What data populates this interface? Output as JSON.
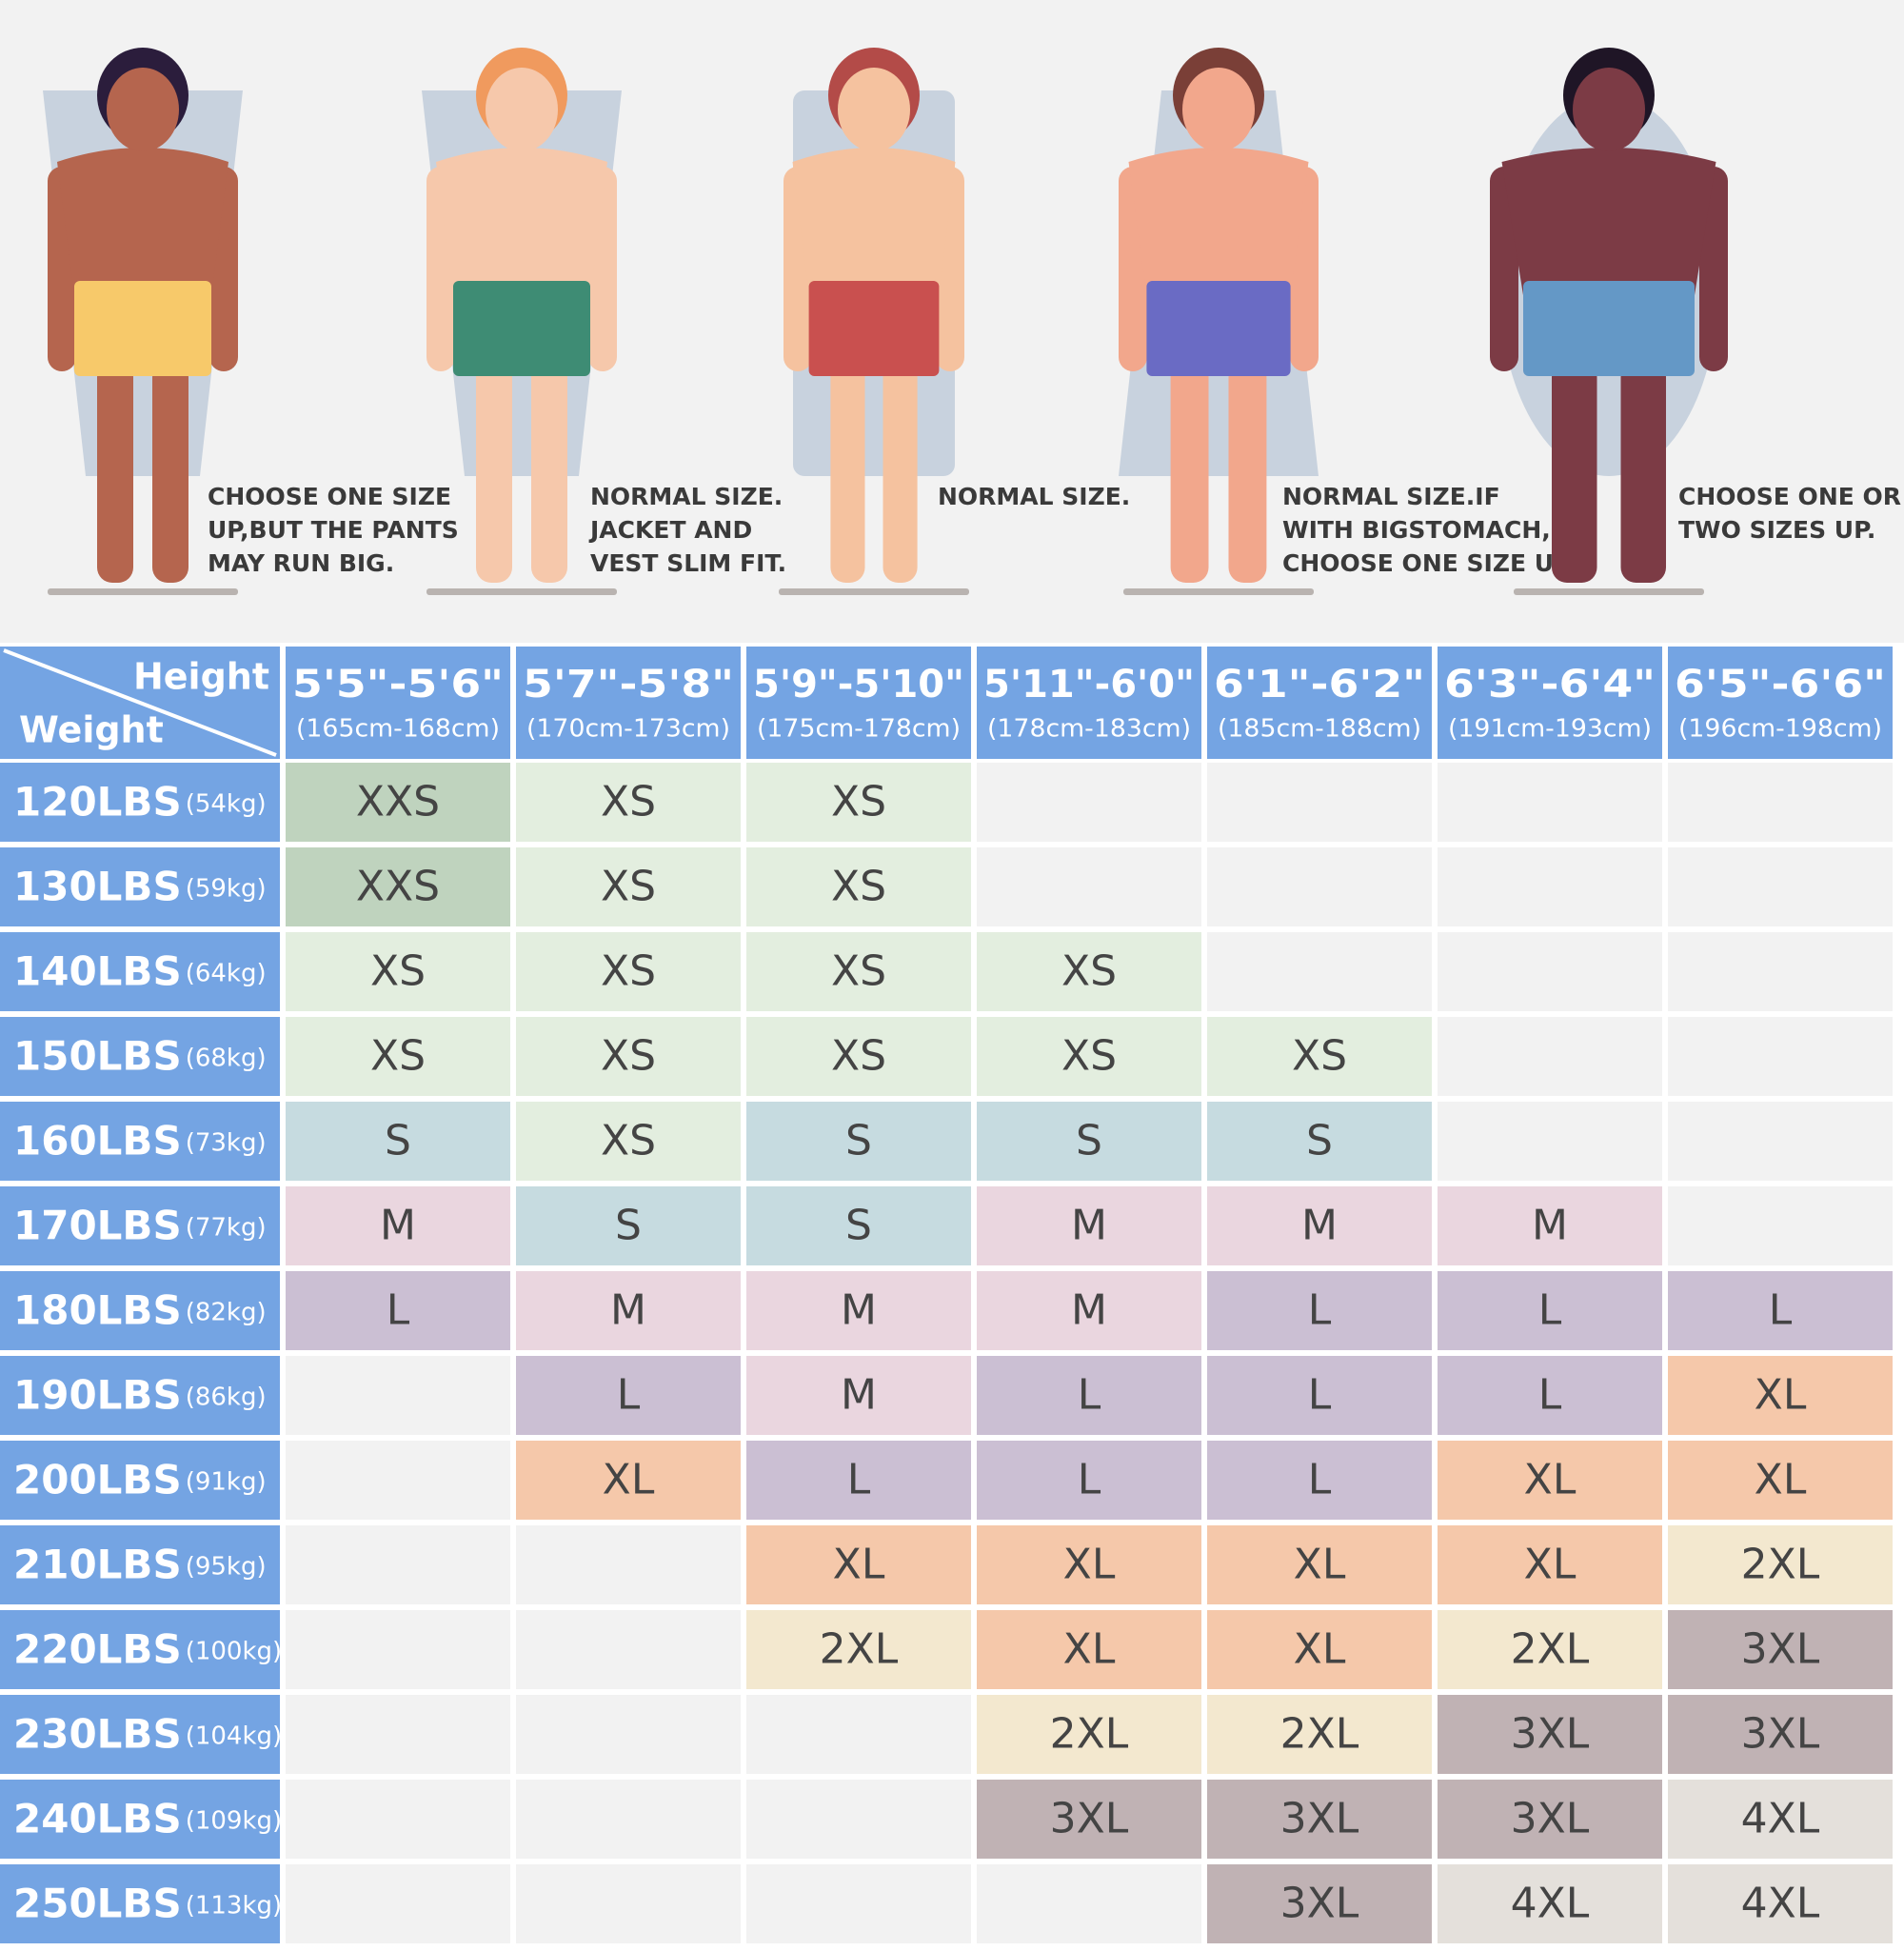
{
  "figures": [
    {
      "caption": [
        "CHOOSE ONE SIZE",
        "UP,BUT THE PANTS",
        "MAY RUN BIG."
      ]
    },
    {
      "caption": [
        "NORMAL SIZE.",
        "JACKET AND",
        "VEST SLIM FIT."
      ]
    },
    {
      "caption": [
        "NORMAL SIZE."
      ]
    },
    {
      "caption": [
        "NORMAL SIZE.IF",
        "WITH BIGSTOMACH,",
        "CHOOSE ONE SIZE UP."
      ]
    },
    {
      "caption": [
        "CHOOSE ONE OR",
        "TWO SIZES UP."
      ]
    }
  ],
  "table": {
    "corner": {
      "height": "Height",
      "weight": "Weight"
    },
    "columns": [
      {
        "height": "5'5\"-5'6\"",
        "cm": "(165cm-168cm)"
      },
      {
        "height": "5'7\"-5'8\"",
        "cm": "(170cm-173cm)"
      },
      {
        "height": "5'9\"-5'10\"",
        "cm": "(175cm-178cm)"
      },
      {
        "height": "5'11\"-6'0\"",
        "cm": "(178cm-183cm)"
      },
      {
        "height": "6'1\"-6'2\"",
        "cm": "(185cm-188cm)"
      },
      {
        "height": "6'3\"-6'4\"",
        "cm": "(191cm-193cm)"
      },
      {
        "height": "6'5\"-6'6\"",
        "cm": "(196cm-198cm)"
      }
    ],
    "rows": [
      {
        "lbs": "120LBS",
        "kg": "(54kg)",
        "cells": [
          "XXS",
          "XS",
          "XS",
          null,
          null,
          null,
          null
        ]
      },
      {
        "lbs": "130LBS",
        "kg": "(59kg)",
        "cells": [
          "XXS",
          "XS",
          "XS",
          null,
          null,
          null,
          null
        ]
      },
      {
        "lbs": "140LBS",
        "kg": "(64kg)",
        "cells": [
          "XS",
          "XS",
          "XS",
          "XS",
          null,
          null,
          null
        ]
      },
      {
        "lbs": "150LBS",
        "kg": "(68kg)",
        "cells": [
          "XS",
          "XS",
          "XS",
          "XS",
          "XS",
          null,
          null
        ]
      },
      {
        "lbs": "160LBS",
        "kg": "(73kg)",
        "cells": [
          "S",
          "XS",
          "S",
          "S",
          "S",
          null,
          null
        ]
      },
      {
        "lbs": "170LBS",
        "kg": "(77kg)",
        "cells": [
          "M",
          "S",
          "S",
          "M",
          "M",
          "M",
          null
        ]
      },
      {
        "lbs": "180LBS",
        "kg": "(82kg)",
        "cells": [
          "L",
          "M",
          "M",
          "M",
          "L",
          "L",
          "L"
        ]
      },
      {
        "lbs": "190LBS",
        "kg": "(86kg)",
        "cells": [
          null,
          "L",
          "M",
          "L",
          "L",
          "L",
          "XL"
        ]
      },
      {
        "lbs": "200LBS",
        "kg": "(91kg)",
        "cells": [
          null,
          "XL",
          "L",
          "L",
          "L",
          "XL",
          "XL"
        ]
      },
      {
        "lbs": "210LBS",
        "kg": "(95kg)",
        "cells": [
          null,
          null,
          "XL",
          "XL",
          "XL",
          "XL",
          "2XL"
        ]
      },
      {
        "lbs": "220LBS",
        "kg": "(100kg)",
        "cells": [
          null,
          null,
          "2XL",
          "XL",
          "XL",
          "2XL",
          "3XL"
        ]
      },
      {
        "lbs": "230LBS",
        "kg": "(104kg)",
        "cells": [
          null,
          null,
          null,
          "2XL",
          "2XL",
          "3XL",
          "3XL"
        ]
      },
      {
        "lbs": "240LBS",
        "kg": "(109kg)",
        "cells": [
          null,
          null,
          null,
          "3XL",
          "3XL",
          "3XL",
          "4XL"
        ]
      },
      {
        "lbs": "250LBS",
        "kg": "(113kg)",
        "cells": [
          null,
          null,
          null,
          null,
          "3XL",
          "4XL",
          "4XL"
        ]
      }
    ],
    "size_colors": {
      "XXS": "#bfd3be",
      "XS": "#e3eedf",
      "S": "#c6dbe0",
      "M": "#ead6df",
      "L": "#cbbfd3",
      "XL": "#f5c8aa",
      "2XL": "#f3e8cf",
      "3XL": "#c0b2b4",
      "4XL": "#e4e0db"
    },
    "empty_color": "#f2f2f2",
    "header_color": "#74a4e3"
  }
}
